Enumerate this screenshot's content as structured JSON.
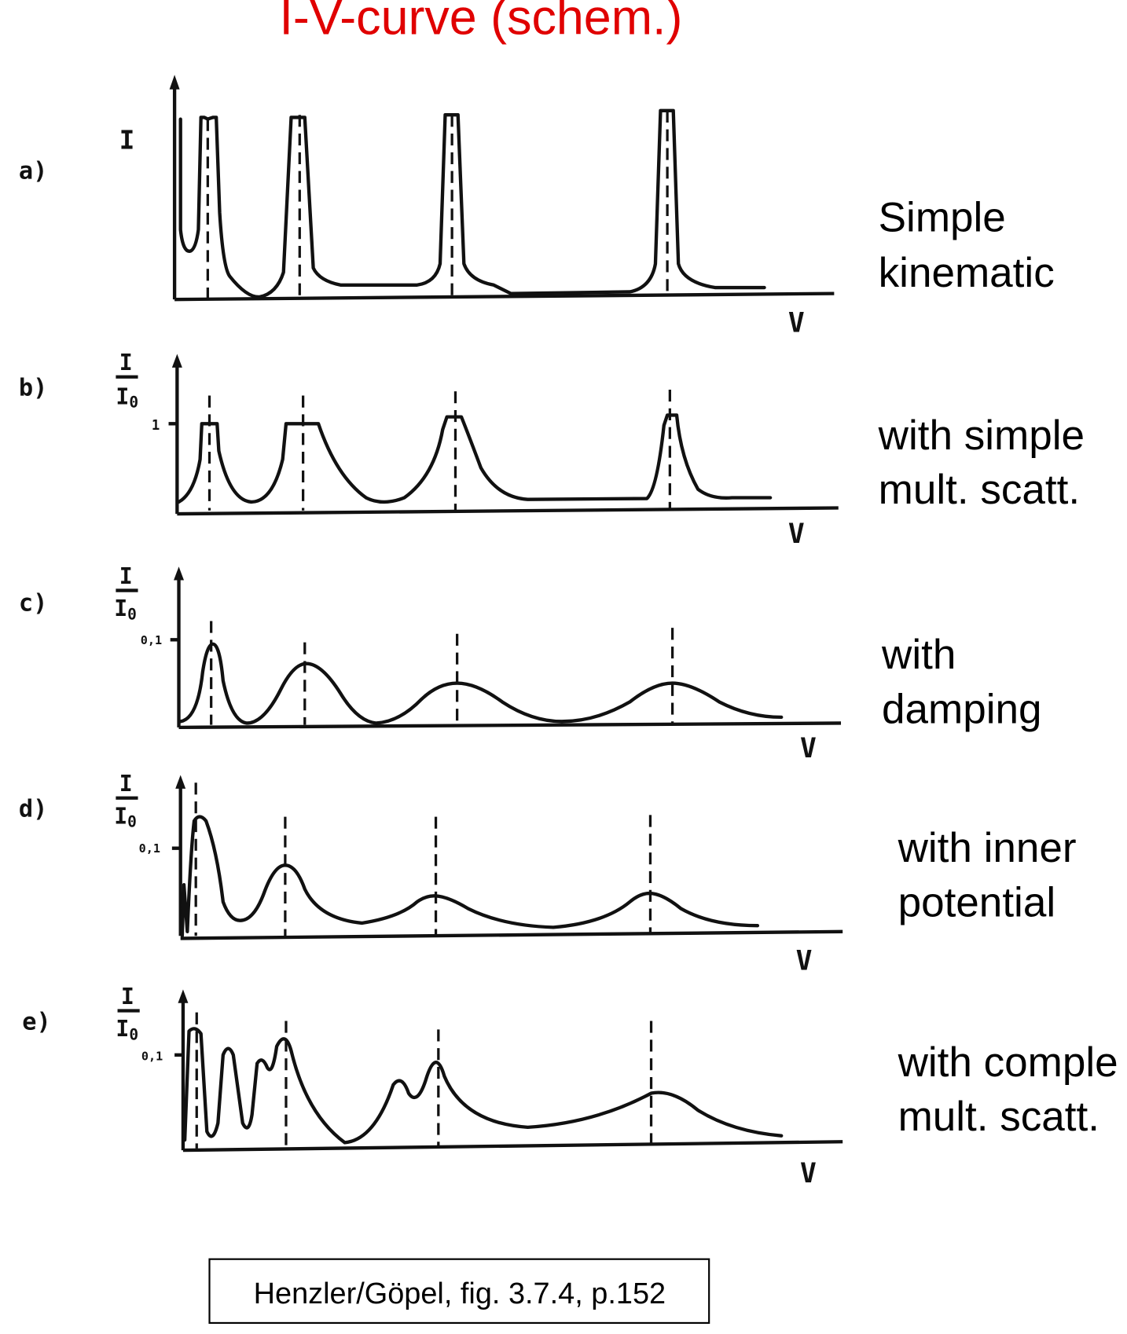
{
  "title": "I-V-curve (schem.)",
  "citation": "Henzler/Göpel, fig. 3.7.4, p.152",
  "colors": {
    "title": "#e00000",
    "ink": "#111111"
  },
  "panels": [
    {
      "label": "a)",
      "ylabel": "I",
      "xlabel": "V",
      "caption": [
        "Simple",
        "kinematic"
      ]
    },
    {
      "label": "b)",
      "ylabel_num": "I",
      "ylabel_den": "I",
      "ylabel_sub": "0",
      "ytick": "1",
      "xlabel": "V",
      "caption": [
        "with simple",
        "mult. scatt."
      ]
    },
    {
      "label": "c)",
      "ylabel_num": "I",
      "ylabel_den": "I",
      "ylabel_sub": "0",
      "ytick": "0,1",
      "xlabel": "V",
      "caption": [
        "with",
        "damping"
      ]
    },
    {
      "label": "d)",
      "ylabel_num": "I",
      "ylabel_den": "I",
      "ylabel_sub": "0",
      "ytick": "0,1",
      "xlabel": "V",
      "caption": [
        "with inner",
        "potential"
      ]
    },
    {
      "label": "e)",
      "ylabel_num": "I",
      "ylabel_den": "I",
      "ylabel_sub": "0",
      "ytick": "0,1",
      "xlabel": "V",
      "caption": [
        "with comple",
        "mult. scatt."
      ]
    }
  ]
}
